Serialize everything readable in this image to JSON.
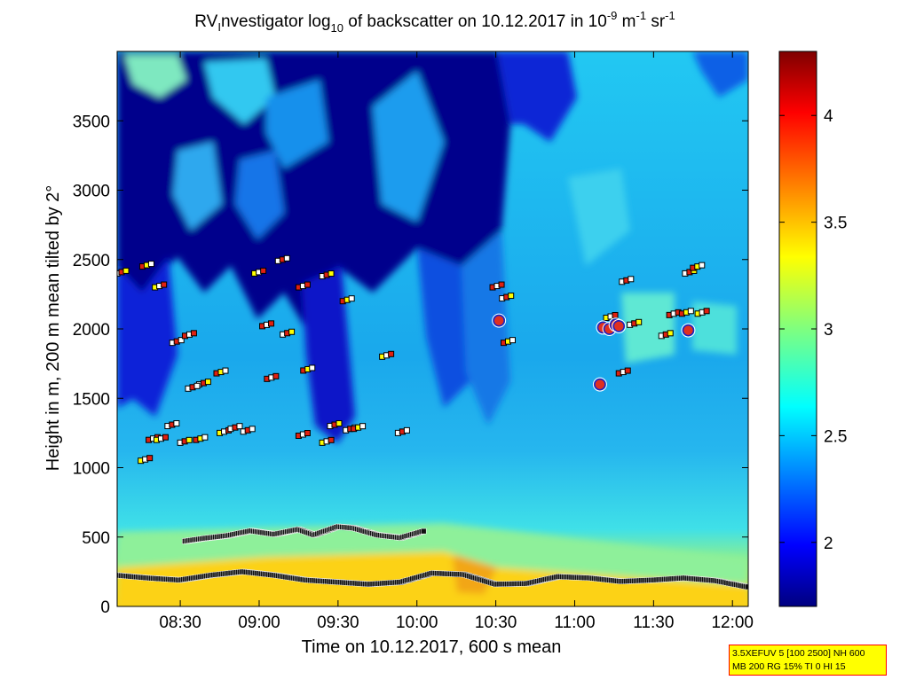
{
  "chart_data": {
    "type": "heatmap",
    "title": {
      "prefix": "RV",
      "sub_i": "I",
      "part1": "nvestigator log",
      "sub_10": "10",
      "part2": " of backscatter on 10.12.2017 in 10",
      "sup_m9": "-9",
      "part3": " m",
      "sup_m1a": "-1",
      "part4": " sr",
      "sup_m1b": "-1"
    },
    "xlabel": "Time on 10.12.2017, 600 s mean",
    "ylabel": "Height in m, 200 m mean tilted by 2°",
    "x_range_hours": [
      8.1,
      12.1
    ],
    "x_ticks": [
      {
        "value": 8.5,
        "label": "08:30"
      },
      {
        "value": 9.0,
        "label": "09:00"
      },
      {
        "value": 9.5,
        "label": "09:30"
      },
      {
        "value": 10.0,
        "label": "10:00"
      },
      {
        "value": 10.5,
        "label": "10:30"
      },
      {
        "value": 11.0,
        "label": "11:00"
      },
      {
        "value": 11.5,
        "label": "11:30"
      },
      {
        "value": 12.0,
        "label": "12:00"
      }
    ],
    "y_range": [
      0,
      4000
    ],
    "y_ticks": [
      {
        "value": 0,
        "label": "0"
      },
      {
        "value": 500,
        "label": "500"
      },
      {
        "value": 1000,
        "label": "1000"
      },
      {
        "value": 1500,
        "label": "1500"
      },
      {
        "value": 2000,
        "label": "2000"
      },
      {
        "value": 2500,
        "label": "2500"
      },
      {
        "value": 3000,
        "label": "3000"
      },
      {
        "value": 3500,
        "label": "3500"
      }
    ],
    "colorbar": {
      "range": [
        1.7,
        4.3
      ],
      "ticks": [
        {
          "value": 2.0,
          "label": "2"
        },
        {
          "value": 2.5,
          "label": "2.5"
        },
        {
          "value": 3.0,
          "label": "3"
        },
        {
          "value": 3.5,
          "label": "3.5"
        },
        {
          "value": 4.0,
          "label": "4"
        }
      ],
      "colormap": "jet"
    },
    "layer_lowest": {
      "name": "lowest layer height (m)",
      "x": [
        8.1,
        8.3,
        8.5,
        8.7,
        8.9,
        9.1,
        9.3,
        9.5,
        9.7,
        9.9,
        10.1,
        10.3,
        10.5,
        10.7,
        10.9,
        11.1,
        11.3,
        11.5,
        11.7,
        11.9,
        12.1
      ],
      "values": [
        225,
        205,
        190,
        225,
        250,
        225,
        190,
        175,
        160,
        175,
        240,
        230,
        160,
        165,
        215,
        205,
        180,
        190,
        205,
        185,
        140
      ]
    },
    "layer_second": {
      "name": "second layer height (m)",
      "x": [
        8.53,
        8.65,
        8.8,
        8.95,
        9.1,
        9.25,
        9.35,
        9.5,
        9.6,
        9.75,
        9.9,
        10.05
      ],
      "values": [
        470,
        490,
        510,
        545,
        520,
        555,
        515,
        575,
        565,
        515,
        495,
        545
      ]
    },
    "layer_points": {
      "name": "upper layer detections",
      "x": [
        8.1,
        8.26,
        8.34,
        8.45,
        8.53,
        8.62,
        8.73,
        8.97,
        9.12,
        9.25,
        9.4,
        9.53,
        9.78,
        9.88,
        8.3,
        8.5,
        8.6,
        8.75,
        8.82,
        9.02,
        9.15,
        9.28,
        9.4,
        9.55,
        10.48,
        10.54,
        10.55,
        11.2,
        11.3,
        11.6,
        11.7,
        11.75,
        8.35,
        8.42,
        9.05,
        9.45,
        9.6,
        8.25,
        8.9,
        11.28,
        11.55,
        11.68,
        11.78,
        8.55,
        9.25,
        11.35
      ],
      "values": [
        2400,
        2450,
        2300,
        1900,
        1950,
        1600,
        1680,
        2400,
        2490,
        2300,
        2380,
        2200,
        1800,
        1250,
        1200,
        1180,
        1200,
        1250,
        1280,
        2020,
        1960,
        1700,
        1180,
        1270,
        2300,
        2220,
        1900,
        2080,
        2340,
        2100,
        2400,
        2440,
        1200,
        1300,
        1640,
        1300,
        1280,
        1050,
        1260,
        1680,
        1950,
        2110,
        2110,
        1570,
        1230,
        2030
      ]
    },
    "cloud_marks": {
      "name": "cloud base detections",
      "x": [
        10.52,
        11.18,
        11.22,
        11.26,
        11.28,
        11.16,
        11.72
      ],
      "values": [
        2060,
        2010,
        2000,
        2030,
        2020,
        1600,
        1990
      ]
    }
  },
  "info_box": {
    "line1": "3.5XEFUV 5 [100 2500] NH 600",
    "line2": "MB 200 RG 15% TI 0 HI 15"
  }
}
